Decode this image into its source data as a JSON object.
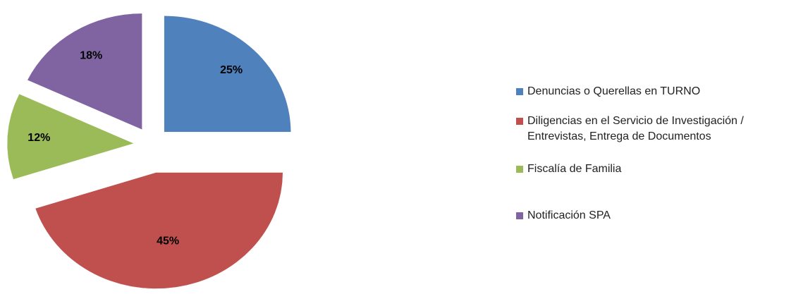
{
  "chart_data": {
    "type": "pie",
    "categories": [
      "Denuncias o Querellas en TURNO",
      "Diligencias en el Servicio de Investigación /\nEntrevistas, Entrega de Documentos",
      "Fiscalía de Familia",
      "Notificación SPA"
    ],
    "values": [
      25,
      45,
      12,
      18
    ],
    "value_labels": [
      "25%",
      "45%",
      "12%",
      "18%"
    ],
    "colors": [
      "#4f81bd",
      "#c0504d",
      "#9bbb59",
      "#8064a2"
    ],
    "legend": "right"
  }
}
